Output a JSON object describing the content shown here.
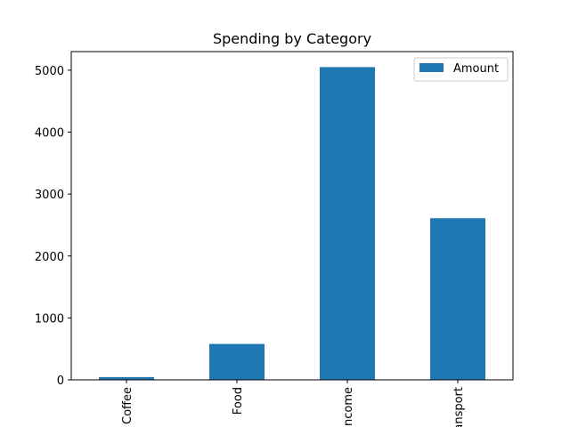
{
  "chart_data": {
    "type": "bar",
    "title": "Spending by Category",
    "xlabel": "",
    "ylabel": "",
    "categories": [
      "Coffee",
      "Food",
      "Income",
      "Transport"
    ],
    "series": [
      {
        "name": "Amount",
        "values": [
          45,
          580,
          5050,
          2610
        ],
        "color": "#1f77b4"
      }
    ],
    "ylim": [
      0,
      5300
    ],
    "yticks": [
      0,
      1000,
      2000,
      3000,
      4000,
      5000
    ],
    "grid": false,
    "legend_position": "top-right"
  }
}
